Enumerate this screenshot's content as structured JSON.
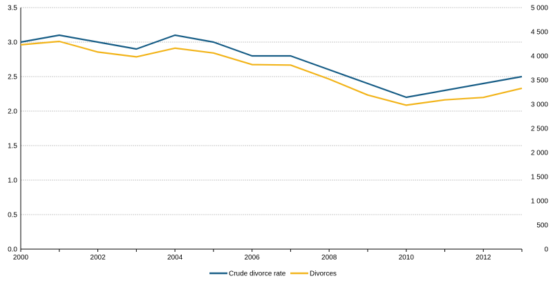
{
  "chart_data": {
    "type": "line",
    "title": "",
    "xlabel": "",
    "ylabel": "",
    "categories": [
      "2000",
      "2001",
      "2002",
      "2003",
      "2004",
      "2005",
      "2006",
      "2007",
      "2008",
      "2009",
      "2010",
      "2011",
      "2012",
      "2013"
    ],
    "x_tick_labels": [
      "2000",
      "2002",
      "2004",
      "2006",
      "2008",
      "2010",
      "2012"
    ],
    "y_left": {
      "range": [
        0,
        3.5
      ],
      "ticks": [
        "0.0",
        "0.5",
        "1.0",
        "1.5",
        "2.0",
        "2.5",
        "3.0",
        "3.5"
      ]
    },
    "y_right": {
      "range": [
        0,
        5000
      ],
      "ticks": [
        "0",
        "500",
        "1 000",
        "1 500",
        "2 000",
        "2 500",
        "3 000",
        "3 500",
        "4 000",
        "4 500",
        "5 000"
      ]
    },
    "grid": true,
    "legend_position": "bottom",
    "series": [
      {
        "name": "Crude divorce rate",
        "axis": "left",
        "color": "#175d86",
        "values": [
          3.0,
          3.1,
          3.0,
          2.9,
          3.1,
          3.0,
          2.8,
          2.8,
          2.6,
          2.4,
          2.2,
          2.3,
          2.4,
          2.5
        ]
      },
      {
        "name": "Divorces",
        "axis": "right",
        "color": "#f2b41a",
        "values": [
          4230,
          4300,
          4080,
          3980,
          4160,
          4060,
          3820,
          3810,
          3520,
          3190,
          2980,
          3090,
          3140,
          3330
        ]
      }
    ]
  }
}
